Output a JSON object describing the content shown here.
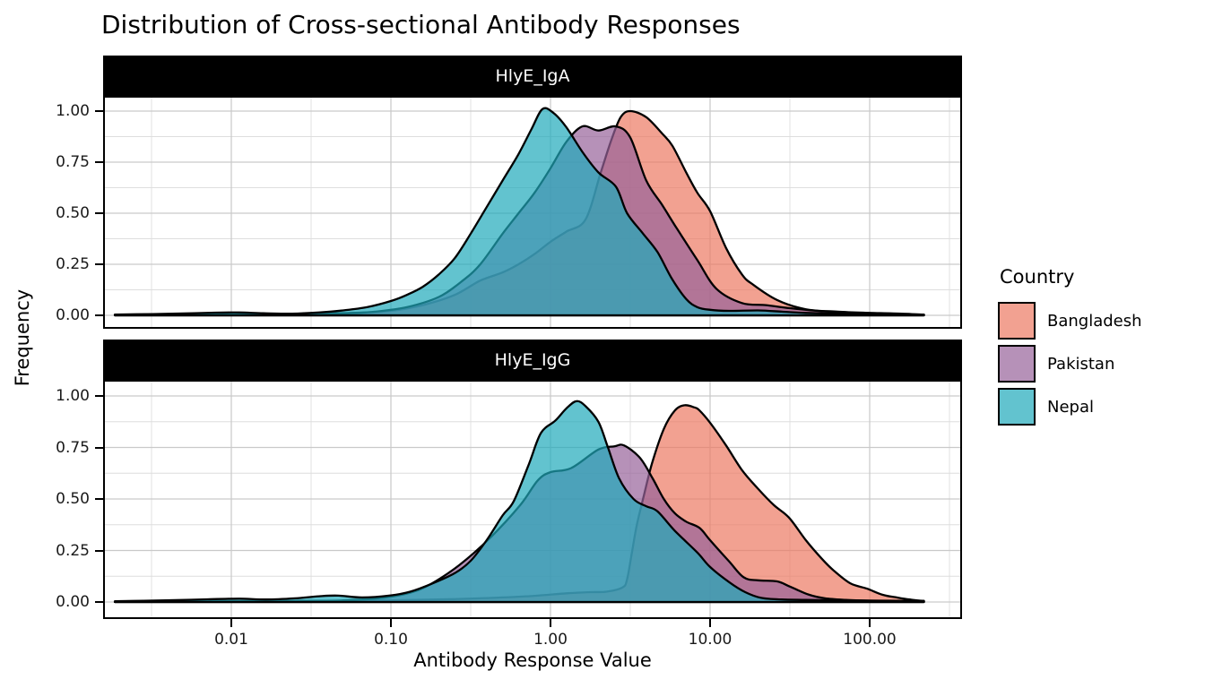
{
  "title": "Distribution of Cross-sectional Antibody Responses",
  "x_axis": {
    "title": "Antibody Response Value",
    "tick_labels": [
      "0.01",
      "0.10",
      "1.00",
      "10.00",
      "100.00"
    ],
    "tick_log10_values": [
      -2,
      -1,
      0,
      1,
      2
    ]
  },
  "y_axis": {
    "title": "Frequency",
    "tick_labels": [
      "1.00",
      "0.75",
      "0.50",
      "0.25",
      "0.00"
    ],
    "tick_values": [
      1.0,
      0.75,
      0.5,
      0.25,
      0.0
    ]
  },
  "legend": {
    "title": "Country",
    "items": [
      {
        "label": "Bangladesh",
        "color": "#EC7963"
      },
      {
        "label": "Pakistan",
        "color": "#97629A"
      },
      {
        "label": "Nepal",
        "color": "#20A9BA"
      }
    ]
  },
  "style": {
    "fill_alpha": 0.7,
    "curve_stroke": "#000000",
    "curve_stroke_width": 2.3,
    "grid_major_color": "#C9C9C9",
    "grid_minor_color": "#DEDEDE",
    "panel_border_color": "#000000",
    "strip_background": "#000000",
    "strip_text_color": "#FFFFFF"
  },
  "chart_data": {
    "type": "area",
    "subtype": "kernel-density",
    "title": "Distribution of Cross-sectional Antibody Responses",
    "xlabel": "Antibody Response Value",
    "ylabel": "Frequency",
    "x_scale": "log10",
    "x_ticks": [
      0.01,
      0.1,
      1,
      10,
      100
    ],
    "xlim_log10": [
      -2.8,
      2.58
    ],
    "ylim": [
      -0.07,
      1.08
    ],
    "grid": "major+minor",
    "legend_position": "right",
    "points_format": "[log10(antibody_response_value), density]",
    "draw_order": [
      "Bangladesh",
      "Pakistan",
      "Nepal"
    ],
    "facets": [
      {
        "label": "HlyE_IgA",
        "series": [
          {
            "name": "Bangladesh",
            "peak": {
              "x": 3.2,
              "density": 1.0
            },
            "points": [
              [
                -2.73,
                0.002
              ],
              [
                -2.3,
                0.003
              ],
              [
                -1.9,
                0.005
              ],
              [
                -1.5,
                0.008
              ],
              [
                -1.2,
                0.013
              ],
              [
                -1.0,
                0.022
              ],
              [
                -0.8,
                0.05
              ],
              [
                -0.6,
                0.1
              ],
              [
                -0.44,
                0.17
              ],
              [
                -0.3,
                0.21
              ],
              [
                -0.2,
                0.25
              ],
              [
                -0.1,
                0.3
              ],
              [
                0.0,
                0.36
              ],
              [
                0.1,
                0.41
              ],
              [
                0.22,
                0.47
              ],
              [
                0.315,
                0.7
              ],
              [
                0.382,
                0.86
              ],
              [
                0.44,
                0.97
              ],
              [
                0.5,
                1.0
              ],
              [
                0.6,
                0.97
              ],
              [
                0.7,
                0.89
              ],
              [
                0.764,
                0.83
              ],
              [
                0.85,
                0.7
              ],
              [
                0.92,
                0.6
              ],
              [
                1.0,
                0.51
              ],
              [
                1.1,
                0.33
              ],
              [
                1.2,
                0.2
              ],
              [
                1.27,
                0.15
              ],
              [
                1.42,
                0.075
              ],
              [
                1.6,
                0.03
              ],
              [
                1.8,
                0.018
              ],
              [
                2.0,
                0.012
              ],
              [
                2.2,
                0.008
              ],
              [
                2.34,
                0.003
              ]
            ]
          },
          {
            "name": "Pakistan",
            "peak": {
              "x": 1.6,
              "density": 0.93
            },
            "points": [
              [
                -2.73,
                0.001
              ],
              [
                -2.0,
                0.002
              ],
              [
                -1.6,
                0.005
              ],
              [
                -1.3,
                0.009
              ],
              [
                -1.1,
                0.018
              ],
              [
                -0.9,
                0.04
              ],
              [
                -0.7,
                0.09
              ],
              [
                -0.55,
                0.17
              ],
              [
                -0.44,
                0.25
              ],
              [
                -0.3,
                0.4
              ],
              [
                -0.2,
                0.5
              ],
              [
                -0.1,
                0.6
              ],
              [
                0.0,
                0.72
              ],
              [
                0.1,
                0.85
              ],
              [
                0.2,
                0.925
              ],
              [
                0.3,
                0.905
              ],
              [
                0.41,
                0.925
              ],
              [
                0.5,
                0.87
              ],
              [
                0.6,
                0.66
              ],
              [
                0.7,
                0.54
              ],
              [
                0.78,
                0.44
              ],
              [
                0.92,
                0.27
              ],
              [
                1.04,
                0.13
              ],
              [
                1.2,
                0.06
              ],
              [
                1.35,
                0.05
              ],
              [
                1.5,
                0.035
              ],
              [
                1.7,
                0.02
              ],
              [
                1.9,
                0.012
              ],
              [
                2.1,
                0.006
              ],
              [
                2.34,
                0.002
              ]
            ]
          },
          {
            "name": "Nepal",
            "peak": {
              "x": 0.9,
              "density": 1.01
            },
            "points": [
              [
                -2.73,
                0.004
              ],
              [
                -2.5,
                0.006
              ],
              [
                -2.3,
                0.009
              ],
              [
                -2.1,
                0.013
              ],
              [
                -1.95,
                0.014
              ],
              [
                -1.8,
                0.01
              ],
              [
                -1.62,
                0.008
              ],
              [
                -1.45,
                0.014
              ],
              [
                -1.3,
                0.024
              ],
              [
                -1.15,
                0.04
              ],
              [
                -1.0,
                0.07
              ],
              [
                -0.9,
                0.1
              ],
              [
                -0.8,
                0.14
              ],
              [
                -0.7,
                0.2
              ],
              [
                -0.6,
                0.28
              ],
              [
                -0.5,
                0.4
              ],
              [
                -0.4,
                0.53
              ],
              [
                -0.3,
                0.66
              ],
              [
                -0.2,
                0.79
              ],
              [
                -0.12,
                0.91
              ],
              [
                -0.05,
                1.01
              ],
              [
                0.02,
                0.99
              ],
              [
                0.1,
                0.92
              ],
              [
                0.2,
                0.8
              ],
              [
                0.3,
                0.7
              ],
              [
                0.41,
                0.63
              ],
              [
                0.48,
                0.5
              ],
              [
                0.58,
                0.4
              ],
              [
                0.67,
                0.31
              ],
              [
                0.76,
                0.18
              ],
              [
                0.85,
                0.08
              ],
              [
                0.92,
                0.04
              ],
              [
                1.0,
                0.027
              ],
              [
                1.12,
                0.022
              ],
              [
                1.3,
                0.024
              ],
              [
                1.45,
                0.018
              ],
              [
                1.6,
                0.012
              ],
              [
                1.8,
                0.008
              ],
              [
                2.0,
                0.006
              ],
              [
                2.2,
                0.005
              ],
              [
                2.34,
                0.004
              ]
            ]
          }
        ]
      },
      {
        "label": "HlyE_IgG",
        "series": [
          {
            "name": "Bangladesh",
            "peak": {
              "x": 6.9,
              "density": 0.955
            },
            "points": [
              [
                -2.73,
                0.001
              ],
              [
                -2.0,
                0.003
              ],
              [
                -1.5,
                0.005
              ],
              [
                -1.0,
                0.008
              ],
              [
                -0.6,
                0.014
              ],
              [
                -0.3,
                0.022
              ],
              [
                -0.1,
                0.03
              ],
              [
                0.1,
                0.042
              ],
              [
                0.25,
                0.048
              ],
              [
                0.35,
                0.05
              ],
              [
                0.45,
                0.07
              ],
              [
                0.48,
                0.11
              ],
              [
                0.51,
                0.24
              ],
              [
                0.54,
                0.37
              ],
              [
                0.58,
                0.5
              ],
              [
                0.635,
                0.67
              ],
              [
                0.71,
                0.84
              ],
              [
                0.78,
                0.93
              ],
              [
                0.84,
                0.955
              ],
              [
                0.9,
                0.945
              ],
              [
                0.933,
                0.93
              ],
              [
                1.0,
                0.87
              ],
              [
                1.1,
                0.76
              ],
              [
                1.2,
                0.64
              ],
              [
                1.3,
                0.55
              ],
              [
                1.4,
                0.47
              ],
              [
                1.494,
                0.41
              ],
              [
                1.6,
                0.3
              ],
              [
                1.7,
                0.21
              ],
              [
                1.775,
                0.152
              ],
              [
                1.88,
                0.09
              ],
              [
                1.983,
                0.065
              ],
              [
                2.08,
                0.035
              ],
              [
                2.169,
                0.022
              ],
              [
                2.25,
                0.012
              ],
              [
                2.34,
                0.005
              ]
            ]
          },
          {
            "name": "Pakistan",
            "peak": {
              "x": 2.85,
              "density": 0.76
            },
            "points": [
              [
                -2.73,
                0.001
              ],
              [
                -2.0,
                0.003
              ],
              [
                -1.6,
                0.005
              ],
              [
                -1.3,
                0.008
              ],
              [
                -1.05,
                0.02
              ],
              [
                -0.88,
                0.045
              ],
              [
                -0.75,
                0.087
              ],
              [
                -0.57,
                0.18
              ],
              [
                -0.38,
                0.31
              ],
              [
                -0.19,
                0.47
              ],
              [
                -0.08,
                0.59
              ],
              [
                0.0,
                0.63
              ],
              [
                0.13,
                0.65
              ],
              [
                0.3,
                0.74
              ],
              [
                0.4,
                0.755
              ],
              [
                0.46,
                0.76
              ],
              [
                0.56,
                0.7
              ],
              [
                0.64,
                0.6
              ],
              [
                0.71,
                0.5
              ],
              [
                0.78,
                0.43
              ],
              [
                0.85,
                0.39
              ],
              [
                0.933,
                0.36
              ],
              [
                1.0,
                0.3
              ],
              [
                1.12,
                0.196
              ],
              [
                1.21,
                0.12
              ],
              [
                1.3,
                0.105
              ],
              [
                1.42,
                0.1
              ],
              [
                1.5,
                0.075
              ],
              [
                1.62,
                0.035
              ],
              [
                1.72,
                0.018
              ],
              [
                1.85,
                0.01
              ],
              [
                2.0,
                0.006
              ],
              [
                2.2,
                0.003
              ],
              [
                2.34,
                0.002
              ]
            ]
          },
          {
            "name": "Nepal",
            "peak": {
              "x": 1.45,
              "density": 0.975
            },
            "points": [
              [
                -2.73,
                0.004
              ],
              [
                -2.55,
                0.006
              ],
              [
                -2.35,
                0.009
              ],
              [
                -2.15,
                0.013
              ],
              [
                -1.95,
                0.016
              ],
              [
                -1.78,
                0.012
              ],
              [
                -1.6,
                0.018
              ],
              [
                -1.45,
                0.028
              ],
              [
                -1.33,
                0.031
              ],
              [
                -1.18,
                0.022
              ],
              [
                -1.0,
                0.032
              ],
              [
                -0.88,
                0.05
              ],
              [
                -0.74,
                0.09
              ],
              [
                -0.6,
                0.14
              ],
              [
                -0.5,
                0.2
              ],
              [
                -0.4,
                0.3
              ],
              [
                -0.3,
                0.42
              ],
              [
                -0.23,
                0.49
              ],
              [
                -0.135,
                0.67
              ],
              [
                -0.06,
                0.82
              ],
              [
                0.03,
                0.88
              ],
              [
                0.1,
                0.94
              ],
              [
                0.163,
                0.975
              ],
              [
                0.22,
                0.95
              ],
              [
                0.3,
                0.875
              ],
              [
                0.36,
                0.75
              ],
              [
                0.43,
                0.6
              ],
              [
                0.52,
                0.5
              ],
              [
                0.6,
                0.465
              ],
              [
                0.67,
                0.44
              ],
              [
                0.78,
                0.345
              ],
              [
                0.92,
                0.24
              ],
              [
                1.0,
                0.17
              ],
              [
                1.12,
                0.096
              ],
              [
                1.22,
                0.048
              ],
              [
                1.32,
                0.02
              ],
              [
                1.45,
                0.012
              ],
              [
                1.6,
                0.01
              ],
              [
                1.8,
                0.008
              ],
              [
                2.0,
                0.007
              ],
              [
                2.2,
                0.006
              ],
              [
                2.34,
                0.005
              ]
            ]
          }
        ]
      }
    ]
  }
}
